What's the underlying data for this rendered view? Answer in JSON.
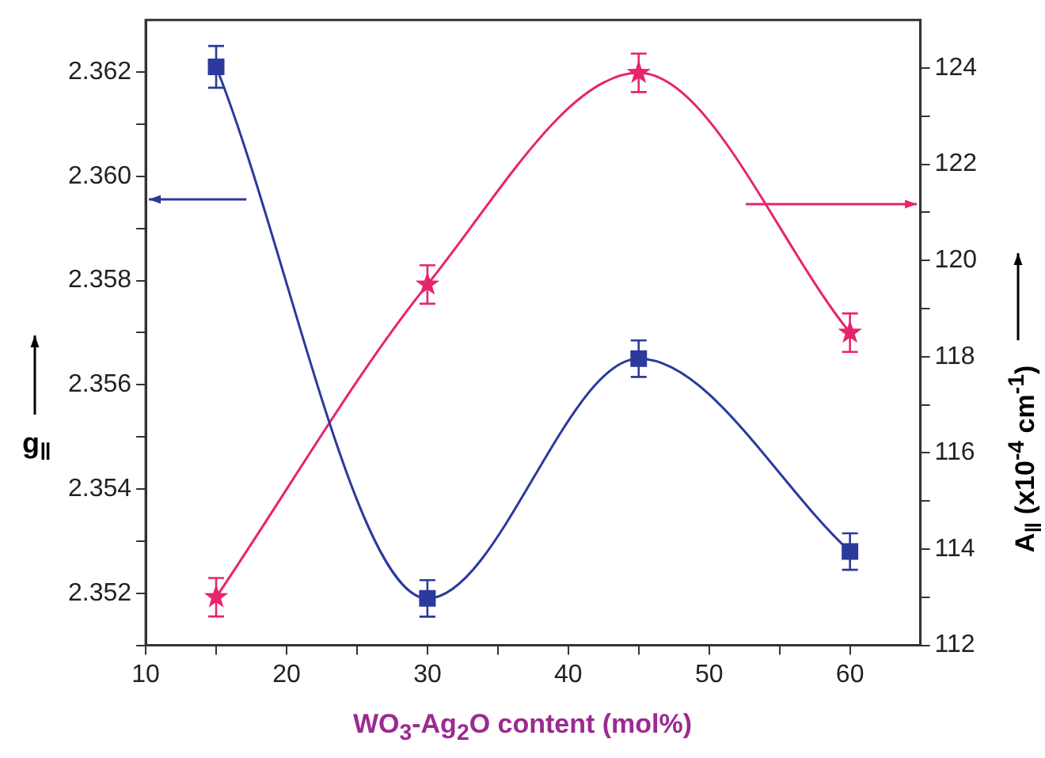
{
  "chart_data": {
    "type": "line",
    "xlabel": "WO$_{3}$-Ag$_{2}$O content (mol%)",
    "ylabel": "g$_{‖}$",
    "y2label": "A$_{‖}$ (x10$^{-4}$ cm$^{-1}$)",
    "x": [
      15,
      30,
      45,
      60
    ],
    "series": [
      {
        "color": "#2b3a9b",
        "marker": "square",
        "values": [
          2.3621,
          2.3519,
          2.3565,
          2.3528
        ],
        "errors": [
          0.0004,
          0.00035,
          0.00035,
          0.00035
        ]
      },
      {
        "color": "#e8246e",
        "marker": "star",
        "axis": "y2",
        "values": [
          113.0,
          119.5,
          123.9,
          118.5
        ],
        "errors": [
          0.4,
          0.4,
          0.4,
          0.4
        ]
      }
    ],
    "xlim": [
      10,
      65
    ],
    "xticks": [
      10,
      {
        "value": 15,
        "label": null
      },
      20,
      {
        "value": 25,
        "label": null
      },
      30,
      {
        "value": 35,
        "label": null
      },
      40,
      {
        "value": 45,
        "label": null
      },
      50,
      {
        "value": 55,
        "label": null
      },
      60
    ],
    "ylim": [
      2.351,
      2.363
    ],
    "yticks": [
      {
        "value": 2.351,
        "label": null
      },
      2.352,
      {
        "value": 2.353,
        "label": null
      },
      2.354,
      {
        "value": 2.355,
        "label": null
      },
      2.356,
      {
        "value": 2.357,
        "label": null
      },
      2.358,
      {
        "value": 2.359,
        "label": null
      },
      {
        "value": 2.36,
        "label": "2.360"
      },
      {
        "value": 2.361,
        "label": null
      },
      2.362
    ],
    "y2lim": [
      112,
      125
    ],
    "y2ticks": [
      112,
      {
        "value": 113,
        "label": null
      },
      114,
      {
        "value": 115,
        "label": null
      },
      116,
      {
        "value": 117,
        "label": null
      },
      118,
      {
        "value": 119,
        "label": null
      },
      120,
      {
        "value": 121,
        "label": null
      },
      122,
      {
        "value": 123,
        "label": null
      },
      124
    ],
    "grid": false,
    "legend": false
  }
}
